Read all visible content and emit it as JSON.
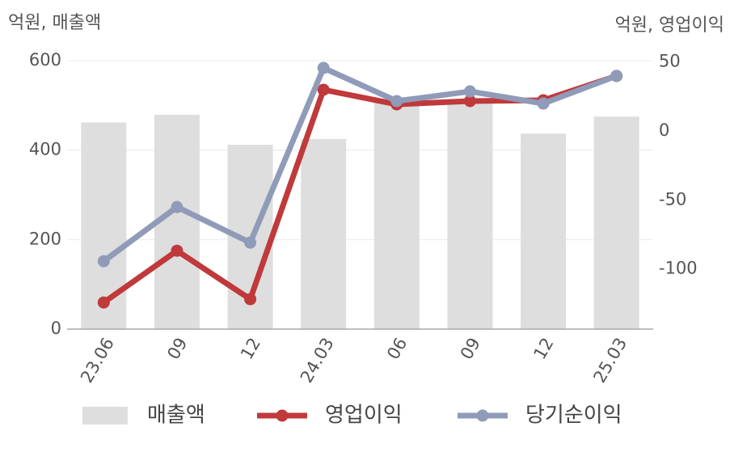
{
  "chart_data": {
    "type": "combo",
    "y_label": "억원, 매출액",
    "y2_label": "억원, 영업이익",
    "categories": [
      "23.06",
      "09",
      "12",
      "24.03",
      "06",
      "09",
      "12",
      "25.03"
    ],
    "series": [
      {
        "name": "매출액",
        "type": "bar",
        "color": "#dedede",
        "values": [
          462,
          479,
          412,
          425,
          506,
          508,
          437,
          475
        ]
      },
      {
        "name": "영업이익",
        "type": "line",
        "axis": "y2",
        "color": "#c0393b",
        "values": [
          -124.3,
          -86.8,
          -121.9,
          29.9,
          19.3,
          21.7,
          22.3,
          39.9
        ]
      },
      {
        "name": "당기순이익",
        "type": "line",
        "axis": "y2",
        "color": "#8f9bb8",
        "values": [
          -94.4,
          -55.1,
          -80.9,
          45.7,
          21.7,
          28.7,
          19.9,
          39.9
        ]
      }
    ],
    "ylim": [
      0,
      600
    ],
    "yticks": [
      0,
      200,
      400,
      600
    ],
    "y2lim": [
      -143.6,
      51
    ],
    "y2ticks": [
      -100,
      -50,
      0,
      50
    ],
    "grid": true,
    "legend": "bottom"
  }
}
